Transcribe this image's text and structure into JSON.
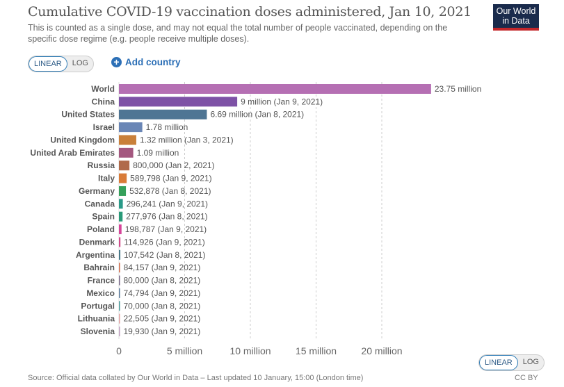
{
  "header": {
    "title": "Cumulative COVID-19 vaccination doses administered, Jan 10, 2021",
    "subtitle": "This is counted as a single dose, and may not equal the total number of people vaccinated, depending on the specific dose regime (e.g. people receive multiple doses).",
    "logo": "Our World in Data"
  },
  "controls": {
    "linear": "LINEAR",
    "log": "LOG",
    "add_country": "Add country",
    "selected_scale": "LINEAR"
  },
  "footer": {
    "source": "Source: Official data collated by Our World in Data – Last updated 10 January, 15:00 (London time)",
    "license": "CC BY"
  },
  "chart_data": {
    "type": "bar",
    "orientation": "horizontal",
    "grid": true,
    "xlim": [
      0,
      25000000
    ],
    "xticks": [
      0,
      5000000,
      10000000,
      15000000,
      20000000
    ],
    "xtick_labels": [
      "0",
      "5 million",
      "10 million",
      "15 million",
      "20 million"
    ],
    "bars": [
      {
        "name": "World",
        "value": 23750000,
        "label": "23.75 million",
        "color": "#b56fb3"
      },
      {
        "name": "China",
        "value": 9000000,
        "label": "9 million (Jan 9, 2021)",
        "color": "#7e52a6"
      },
      {
        "name": "United States",
        "value": 6690000,
        "label": "6.69 million (Jan 8, 2021)",
        "color": "#4f7594"
      },
      {
        "name": "Israel",
        "value": 1780000,
        "label": "1.78 million",
        "color": "#6a86b6"
      },
      {
        "name": "United Kingdom",
        "value": 1320000,
        "label": "1.32 million (Jan 3, 2021)",
        "color": "#c9803a"
      },
      {
        "name": "United Arab Emirates",
        "value": 1090000,
        "label": "1.09 million",
        "color": "#a4577f"
      },
      {
        "name": "Russia",
        "value": 800000,
        "label": "800,000 (Jan 2, 2021)",
        "color": "#b06a4a"
      },
      {
        "name": "Italy",
        "value": 589798,
        "label": "589,798 (Jan 9, 2021)",
        "color": "#d97b38"
      },
      {
        "name": "Germany",
        "value": 532878,
        "label": "532,878 (Jan 8, 2021)",
        "color": "#35a05a"
      },
      {
        "name": "Canada",
        "value": 296241,
        "label": "296,241 (Jan 9, 2021)",
        "color": "#2a9a88"
      },
      {
        "name": "Spain",
        "value": 277976,
        "label": "277,976 (Jan 8, 2021)",
        "color": "#2a9a78"
      },
      {
        "name": "Poland",
        "value": 198787,
        "label": "198,787 (Jan 9, 2021)",
        "color": "#d6449a"
      },
      {
        "name": "Denmark",
        "value": 114926,
        "label": "114,926 (Jan 9, 2021)",
        "color": "#d04a8a"
      },
      {
        "name": "Argentina",
        "value": 107542,
        "label": "107,542 (Jan 8, 2021)",
        "color": "#4a7a8a"
      },
      {
        "name": "Bahrain",
        "value": 84157,
        "label": "84,157 (Jan 9, 2021)",
        "color": "#d07050"
      },
      {
        "name": "France",
        "value": 80000,
        "label": "80,000 (Jan 8, 2021)",
        "color": "#7a6a8a"
      },
      {
        "name": "Mexico",
        "value": 74794,
        "label": "74,794 (Jan 9, 2021)",
        "color": "#5a7a9a"
      },
      {
        "name": "Portugal",
        "value": 70000,
        "label": "70,000 (Jan 8, 2021)",
        "color": "#4a9a9a"
      },
      {
        "name": "Lithuania",
        "value": 22505,
        "label": "22,505 (Jan 9, 2021)",
        "color": "#e0a0a0"
      },
      {
        "name": "Slovenia",
        "value": 19930,
        "label": "19,930 (Jan 9, 2021)",
        "color": "#c0a0c0"
      }
    ]
  }
}
